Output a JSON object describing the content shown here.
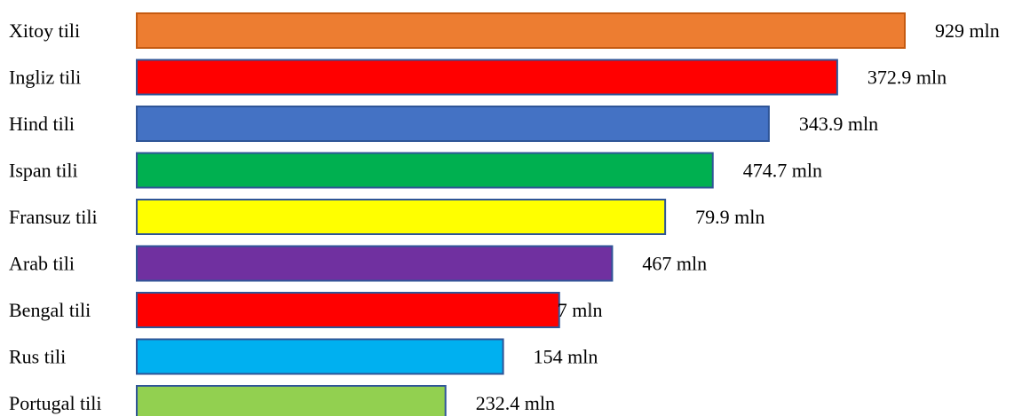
{
  "chart_data": {
    "type": "bar",
    "orientation": "horizontal",
    "categories": [
      "Xitoy tili",
      "Ingliz tili",
      "Hind tili",
      "Ispan tili",
      "Fransuz tili",
      "Arab tili",
      "Bengal tili",
      "Rus tili",
      "Portugal tili"
    ],
    "values": [
      929,
      372.9,
      343.9,
      474.7,
      79.9,
      467,
      7,
      154,
      232.4
    ],
    "value_labels": [
      "929 mln",
      "372.9 mln",
      "343.9 mln",
      "474.7 mln",
      "79.9 mln",
      "467 mln",
      "7 mln",
      "154 mln",
      "232.4 mln"
    ],
    "bar_length_fraction": [
      1.0,
      0.912,
      0.823,
      0.75,
      0.688,
      0.619,
      0.55,
      0.477,
      0.402
    ],
    "colors": [
      "#ED7D31",
      "#FF0000",
      "#4472C4",
      "#00B050",
      "#FFFF00",
      "#7030A0",
      "#FF0000",
      "#00B0F0",
      "#92D050"
    ],
    "bar_border_color": "#2F5597",
    "first_bar_border_color": "#C55A11",
    "title": "",
    "xlabel": "",
    "ylabel": "",
    "grid": false,
    "legend": "none"
  }
}
